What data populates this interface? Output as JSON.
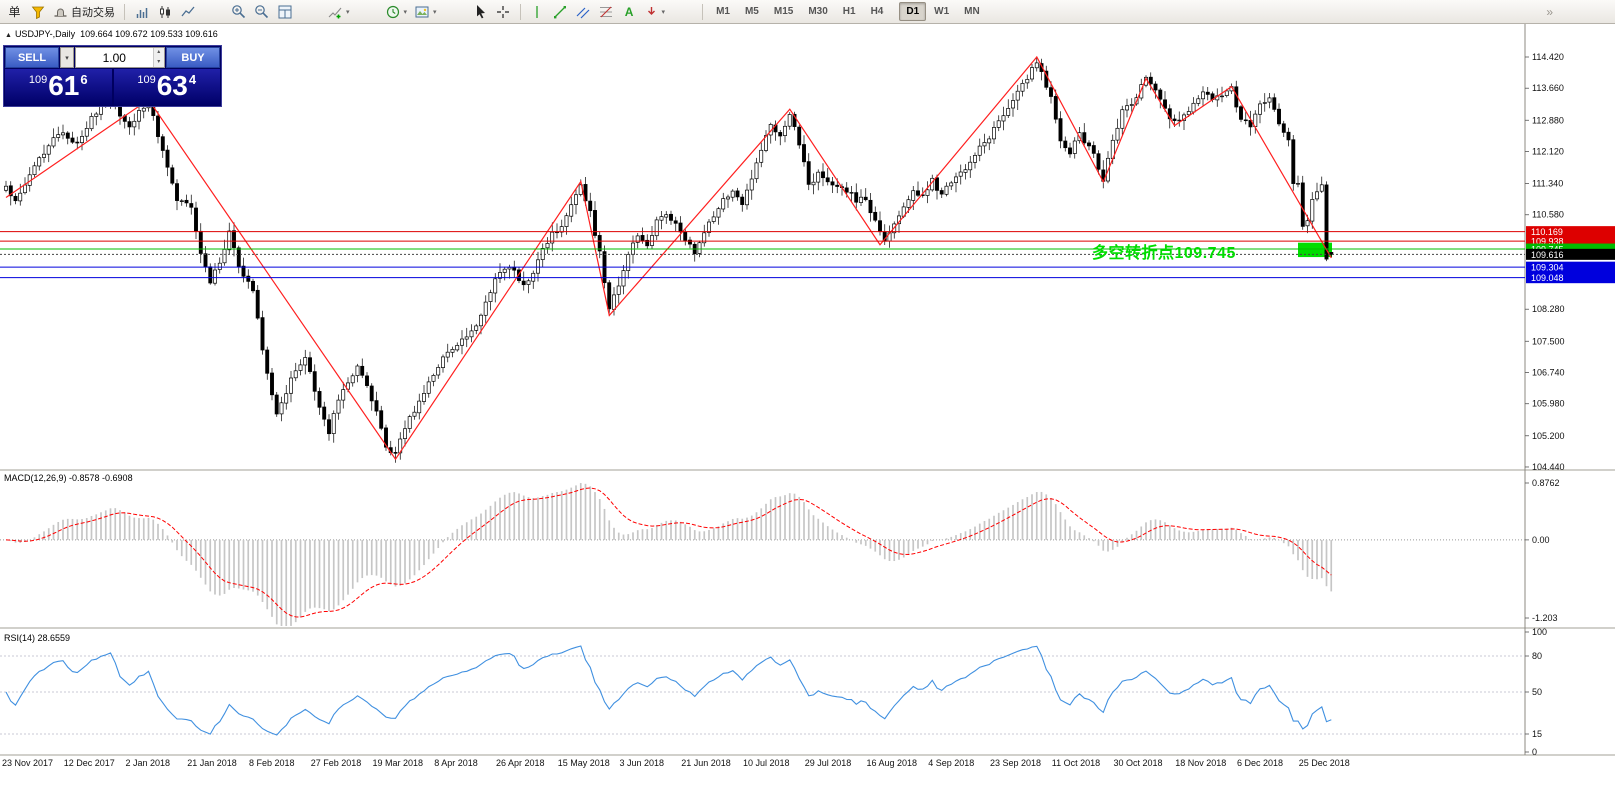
{
  "toolbar": {
    "order_label": "单",
    "auto_trading_label": "自动交易",
    "timeframes": [
      "M1",
      "M5",
      "M15",
      "M30",
      "H1",
      "H4",
      "D1",
      "W1",
      "MN"
    ],
    "active_timeframe": "D1"
  },
  "icons": {
    "caret": "▾",
    "spin_up": "▴",
    "spin_down": "▾",
    "text_tool": "A",
    "window_marker": "▲",
    "overflow": "»"
  },
  "chart": {
    "title": "USDJPY-,Daily",
    "ohlc_text": "109.664 109.672 109.533 109.616",
    "annotation_text": "多空转折点109.745",
    "trade_panel": {
      "sell_label": "SELL",
      "buy_label": "BUY",
      "volume": "1.00",
      "bid_prefix": "109",
      "bid_big": "61",
      "bid_sup": "6",
      "ask_prefix": "109",
      "ask_big": "63",
      "ask_sup": "4"
    },
    "colors": {
      "bull": "#ffffff",
      "bear": "#000000",
      "wick": "#000000",
      "zigzag": "#ff2020",
      "annotation": "#00dd00",
      "highlight_box": "#00dd00",
      "macd_histogram": "#c6c6c6",
      "macd_signal": "#ff0000",
      "rsi_line": "#4090e0",
      "level_red": "#dd0000",
      "level_green": "#00bb00",
      "level_blue": "#0000dd"
    }
  },
  "chart_data": {
    "type": "candlestick",
    "symbol": "USDJPY",
    "timeframe": "Daily",
    "bars": 280,
    "last_ohlc": [
      109.664,
      109.672,
      109.533,
      109.616
    ],
    "close_anchors": [
      [
        0,
        111.2
      ],
      [
        2,
        111.0
      ],
      [
        5,
        111.5
      ],
      [
        8,
        112.1
      ],
      [
        11,
        112.6
      ],
      [
        13,
        112.5
      ],
      [
        15,
        112.3
      ],
      [
        18,
        112.9
      ],
      [
        20,
        113.3
      ],
      [
        22,
        113.5
      ],
      [
        24,
        113.0
      ],
      [
        26,
        112.7
      ],
      [
        28,
        113.1
      ],
      [
        30,
        113.35
      ],
      [
        32,
        112.5
      ],
      [
        34,
        111.7
      ],
      [
        36,
        111.0
      ],
      [
        39,
        110.8
      ],
      [
        41,
        109.6
      ],
      [
        43,
        108.95
      ],
      [
        45,
        109.4
      ],
      [
        47,
        110.2
      ],
      [
        49,
        109.3
      ],
      [
        52,
        108.7
      ],
      [
        54,
        107.3
      ],
      [
        56,
        106.2
      ],
      [
        57,
        105.8
      ],
      [
        59,
        106.3
      ],
      [
        61,
        106.8
      ],
      [
        63,
        107.1
      ],
      [
        65,
        106.3
      ],
      [
        67,
        105.6
      ],
      [
        68,
        105.3
      ],
      [
        70,
        106.1
      ],
      [
        72,
        106.5
      ],
      [
        74,
        106.9
      ],
      [
        76,
        106.4
      ],
      [
        78,
        105.8
      ],
      [
        80,
        105.0
      ],
      [
        82,
        104.7
      ],
      [
        84,
        105.4
      ],
      [
        86,
        105.8
      ],
      [
        88,
        106.3
      ],
      [
        91,
        106.9
      ],
      [
        93,
        107.2
      ],
      [
        95,
        107.4
      ],
      [
        97,
        107.6
      ],
      [
        99,
        107.8
      ],
      [
        101,
        108.5
      ],
      [
        103,
        109.0
      ],
      [
        105,
        109.3
      ],
      [
        107,
        109.2
      ],
      [
        109,
        108.9
      ],
      [
        111,
        109.2
      ],
      [
        113,
        109.7
      ],
      [
        115,
        110.1
      ],
      [
        117,
        110.3
      ],
      [
        119,
        110.9
      ],
      [
        121,
        111.3
      ],
      [
        123,
        110.6
      ],
      [
        125,
        109.7
      ],
      [
        127,
        108.3
      ],
      [
        129,
        108.9
      ],
      [
        131,
        109.6
      ],
      [
        133,
        110.1
      ],
      [
        135,
        109.9
      ],
      [
        137,
        110.4
      ],
      [
        139,
        110.6
      ],
      [
        141,
        110.3
      ],
      [
        143,
        110.0
      ],
      [
        145,
        109.6
      ],
      [
        147,
        110.2
      ],
      [
        149,
        110.6
      ],
      [
        151,
        110.9
      ],
      [
        153,
        111.2
      ],
      [
        155,
        110.9
      ],
      [
        157,
        111.5
      ],
      [
        159,
        112.2
      ],
      [
        161,
        112.8
      ],
      [
        163,
        112.5
      ],
      [
        165,
        113.1
      ],
      [
        167,
        112.3
      ],
      [
        169,
        111.3
      ],
      [
        171,
        111.6
      ],
      [
        173,
        111.4
      ],
      [
        175,
        111.3
      ],
      [
        177,
        111.2
      ],
      [
        179,
        110.9
      ],
      [
        181,
        111.0
      ],
      [
        183,
        110.4
      ],
      [
        185,
        109.9
      ],
      [
        187,
        110.3
      ],
      [
        189,
        110.8
      ],
      [
        191,
        111.2
      ],
      [
        193,
        111.0
      ],
      [
        195,
        111.4
      ],
      [
        197,
        111.1
      ],
      [
        199,
        111.3
      ],
      [
        201,
        111.6
      ],
      [
        203,
        111.9
      ],
      [
        205,
        112.2
      ],
      [
        207,
        112.5
      ],
      [
        209,
        112.9
      ],
      [
        211,
        113.2
      ],
      [
        213,
        113.55
      ],
      [
        215,
        113.9
      ],
      [
        217,
        114.35
      ],
      [
        218,
        114.1
      ],
      [
        220,
        113.4
      ],
      [
        222,
        112.3
      ],
      [
        224,
        112.1
      ],
      [
        226,
        112.5
      ],
      [
        228,
        112.3
      ],
      [
        230,
        111.7
      ],
      [
        231,
        111.45
      ],
      [
        233,
        112.4
      ],
      [
        235,
        113.1
      ],
      [
        237,
        113.3
      ],
      [
        239,
        113.7
      ],
      [
        240,
        113.85
      ],
      [
        242,
        113.6
      ],
      [
        244,
        113.1
      ],
      [
        246,
        112.8
      ],
      [
        248,
        113.0
      ],
      [
        250,
        113.3
      ],
      [
        252,
        113.5
      ],
      [
        254,
        113.4
      ],
      [
        256,
        113.55
      ],
      [
        258,
        113.65
      ],
      [
        260,
        112.9
      ],
      [
        262,
        112.7
      ],
      [
        264,
        113.2
      ],
      [
        266,
        113.45
      ],
      [
        268,
        112.8
      ],
      [
        270,
        112.35
      ],
      [
        271,
        111.4
      ],
      [
        272,
        111.3
      ],
      [
        273,
        110.35
      ],
      [
        274,
        110.45
      ],
      [
        275,
        110.9
      ],
      [
        276,
        111.1
      ],
      [
        277,
        111.25
      ],
      [
        278,
        109.55
      ],
      [
        279,
        109.616
      ]
    ],
    "zigzag": [
      [
        0,
        111.0
      ],
      [
        30,
        113.38
      ],
      [
        82,
        104.63
      ],
      [
        121,
        111.39
      ],
      [
        127,
        108.13
      ],
      [
        165,
        113.15
      ],
      [
        184,
        109.85
      ],
      [
        217,
        114.42
      ],
      [
        231,
        111.38
      ],
      [
        240,
        113.9
      ],
      [
        246,
        112.75
      ],
      [
        258,
        113.7
      ],
      [
        279,
        109.53
      ]
    ],
    "levels": [
      {
        "label": "110.169",
        "value": 110.169,
        "color": "#dd0000",
        "style": "solid"
      },
      {
        "label": "109.938",
        "value": 109.938,
        "color": "#dd0000",
        "style": "solid"
      },
      {
        "label": "109.745",
        "value": 109.745,
        "color": "#00bb00",
        "style": "solid"
      },
      {
        "label": "109.616",
        "value": 109.616,
        "color": "#000000",
        "style": "current"
      },
      {
        "label": "109.304",
        "value": 109.304,
        "color": "#0000dd",
        "style": "solid"
      },
      {
        "label": "109.048",
        "value": 109.048,
        "color": "#0000dd",
        "style": "solid"
      }
    ],
    "y_ticks": [
      {
        "label": "114.420",
        "value": 114.42
      },
      {
        "label": "113.660",
        "value": 113.66
      },
      {
        "label": "112.880",
        "value": 112.88
      },
      {
        "label": "112.120",
        "value": 112.12
      },
      {
        "label": "111.340",
        "value": 111.34
      },
      {
        "label": "110.580",
        "value": 110.58
      },
      {
        "label": "108.280",
        "value": 108.28
      },
      {
        "label": "107.500",
        "value": 107.5
      },
      {
        "label": "106.740",
        "value": 106.74
      },
      {
        "label": "105.980",
        "value": 105.98
      },
      {
        "label": "105.200",
        "value": 105.2
      },
      {
        "label": "104.440",
        "value": 104.44
      }
    ],
    "x_labels": [
      "23 Nov 2017",
      "12 Dec 2017",
      "2 Jan 2018",
      "21 Jan 2018",
      "8 Feb 2018",
      "27 Feb 2018",
      "19 Mar 2018",
      "8 Apr 2018",
      "26 Apr 2018",
      "15 May 2018",
      "3 Jun 2018",
      "21 Jun 2018",
      "10 Jul 2018",
      "29 Jul 2018",
      "16 Aug 2018",
      "4 Sep 2018",
      "23 Sep 2018",
      "11 Oct 2018",
      "30 Oct 2018",
      "18 Nov 2018",
      "6 Dec 2018",
      "25 Dec 2018"
    ],
    "macd": {
      "label": "MACD(12,26,9) -0.8578 -0.6908",
      "params": [
        12,
        26,
        9
      ],
      "main_value": -0.8578,
      "signal_value": -0.6908,
      "ticks": [
        {
          "label": "0.8762",
          "value": 0.8762
        },
        {
          "label": "0.00",
          "value": 0
        },
        {
          "label": "-1.203",
          "value": -1.203
        }
      ]
    },
    "rsi": {
      "label": "RSI(14) 28.6559",
      "period": 14,
      "value": 28.6559,
      "levels": [
        80,
        50,
        15
      ],
      "ticks": [
        {
          "label": "100",
          "value": 100
        },
        {
          "label": "80",
          "value": 80
        },
        {
          "label": "50",
          "value": 50
        },
        {
          "label": "15",
          "value": 15
        },
        {
          "label": "0",
          "value": 0
        }
      ]
    }
  }
}
